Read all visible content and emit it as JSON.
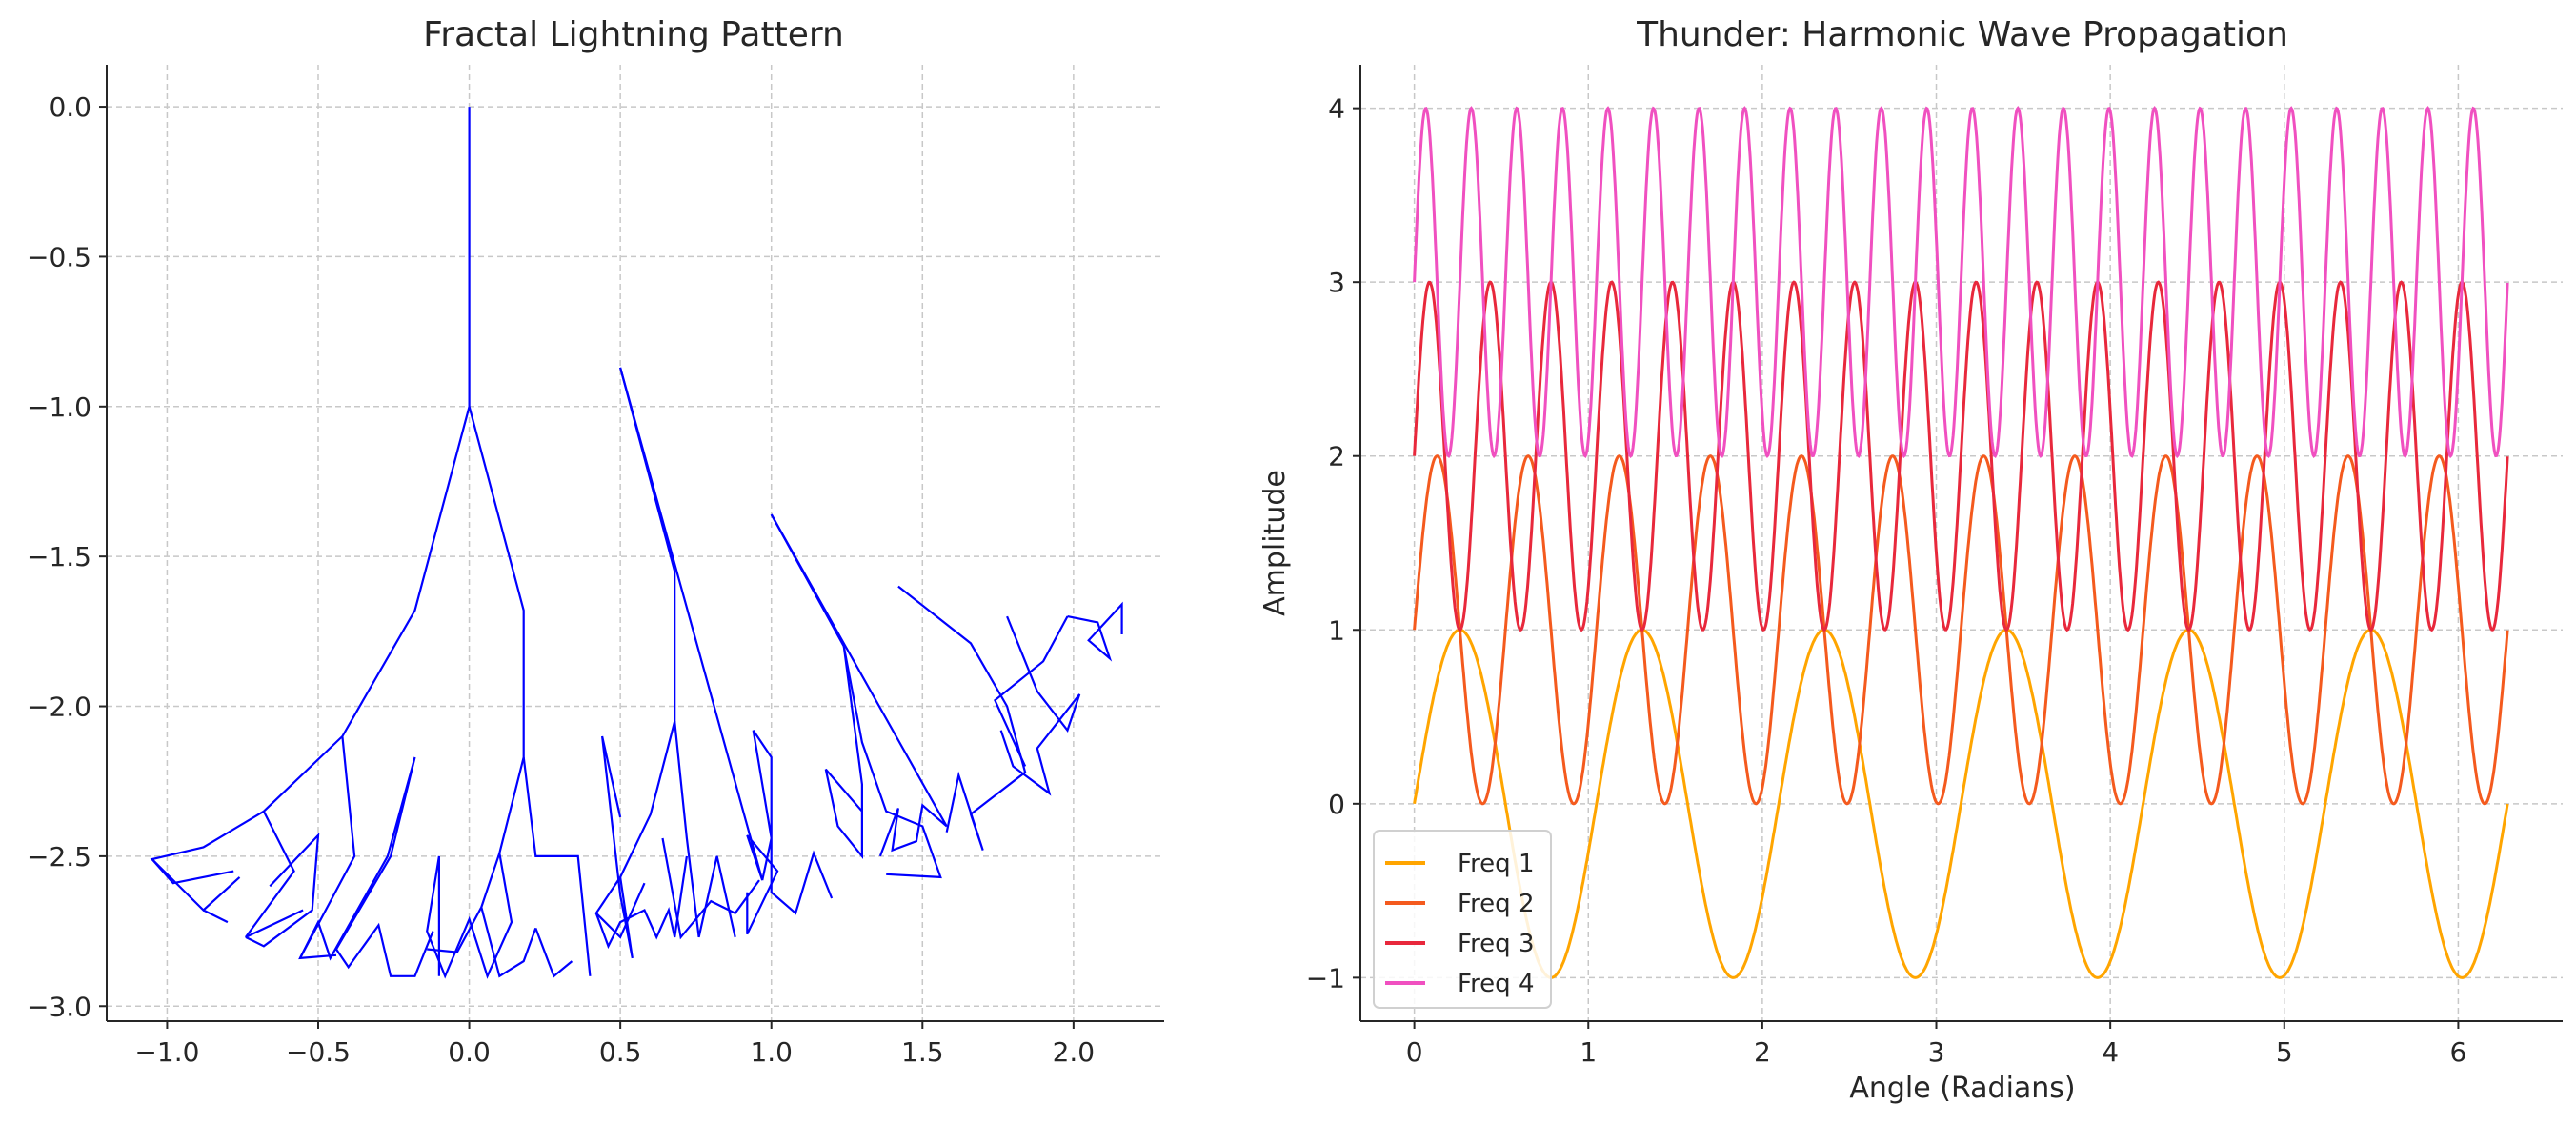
{
  "chart_data": [
    {
      "type": "line",
      "title": "Fractal Lightning Pattern",
      "xlabel": "",
      "ylabel": "",
      "xlim": [
        -1.2,
        2.3
      ],
      "ylim": [
        -3.05,
        0.14
      ],
      "grid": true,
      "xticks": [
        -1.0,
        -0.5,
        0.0,
        0.5,
        1.0,
        1.5,
        2.0
      ],
      "yticks": [
        0.0,
        -0.5,
        -1.0,
        -1.5,
        -2.0,
        -2.5,
        -3.0
      ],
      "xtick_labels": [
        "−1.0",
        "−0.5",
        "0.0",
        "0.5",
        "1.0",
        "1.5",
        "2.0"
      ],
      "ytick_labels": [
        "0.0",
        "−0.5",
        "−1.0",
        "−1.5",
        "−2.0",
        "−2.5",
        "−3.0"
      ],
      "color": "#0000ff",
      "series": [
        {
          "points": [
            [
              0,
              0
            ],
            [
              0,
              -1
            ],
            [
              -0.18,
              -1.68
            ],
            [
              -0.42,
              -2.1
            ],
            [
              -0.68,
              -2.35
            ],
            [
              -0.88,
              -2.47
            ],
            [
              -1.05,
              -2.51
            ],
            [
              -0.98,
              -2.59
            ],
            [
              -0.78,
              -2.55
            ]
          ]
        },
        {
          "points": [
            [
              -1.05,
              -2.51
            ],
            [
              -0.88,
              -2.68
            ],
            [
              -0.76,
              -2.57
            ]
          ]
        },
        {
          "points": [
            [
              -0.88,
              -2.68
            ],
            [
              -0.8,
              -2.72
            ]
          ]
        },
        {
          "points": [
            [
              -0.68,
              -2.35
            ],
            [
              -0.58,
              -2.55
            ],
            [
              -0.74,
              -2.77
            ],
            [
              -0.55,
              -2.68
            ]
          ]
        },
        {
          "points": [
            [
              -0.74,
              -2.77
            ],
            [
              -0.68,
              -2.8
            ],
            [
              -0.52,
              -2.68
            ],
            [
              -0.5,
              -2.43
            ],
            [
              -0.66,
              -2.6
            ]
          ]
        },
        {
          "points": [
            [
              -0.42,
              -2.1
            ],
            [
              -0.38,
              -2.5
            ],
            [
              -0.56,
              -2.84
            ],
            [
              -0.44,
              -2.83
            ],
            [
              -0.56,
              -2.84
            ]
          ]
        },
        {
          "points": [
            [
              -0.56,
              -2.84
            ],
            [
              -0.5,
              -2.72
            ],
            [
              -0.46,
              -2.84
            ],
            [
              -0.27,
              -2.5
            ],
            [
              -0.18,
              -2.17
            ],
            [
              -0.26,
              -2.5
            ],
            [
              -0.44,
              -2.81
            ]
          ]
        },
        {
          "points": [
            [
              -0.44,
              -2.81
            ],
            [
              -0.4,
              -2.87
            ],
            [
              -0.3,
              -2.73
            ],
            [
              -0.26,
              -2.9
            ],
            [
              -0.18,
              -2.9
            ],
            [
              -0.12,
              -2.75
            ]
          ]
        },
        {
          "points": [
            [
              0,
              -1
            ],
            [
              0.18,
              -1.68
            ],
            [
              0.18,
              -2.17
            ],
            [
              0.1,
              -2.49
            ],
            [
              0.04,
              -2.67
            ],
            [
              -0.04,
              -2.82
            ],
            [
              -0.14,
              -2.81
            ]
          ]
        },
        {
          "points": [
            [
              0.1,
              -2.49
            ],
            [
              0.14,
              -2.72
            ],
            [
              0.06,
              -2.9
            ],
            [
              0,
              -2.71
            ],
            [
              -0.08,
              -2.9
            ],
            [
              -0.14,
              -2.75
            ],
            [
              -0.1,
              -2.5
            ],
            [
              -0.1,
              -2.9
            ]
          ]
        },
        {
          "points": [
            [
              0.04,
              -2.67
            ],
            [
              0.1,
              -2.9
            ],
            [
              0.18,
              -2.85
            ],
            [
              0.22,
              -2.74
            ]
          ]
        },
        {
          "points": [
            [
              0.22,
              -2.74
            ],
            [
              0.28,
              -2.9
            ],
            [
              0.34,
              -2.85
            ]
          ]
        },
        {
          "points": [
            [
              0.18,
              -2.17
            ],
            [
              0.22,
              -2.5
            ],
            [
              0.36,
              -2.5
            ],
            [
              0.4,
              -2.9
            ]
          ]
        },
        {
          "points": [
            [
              0.5,
              -0.87
            ],
            [
              0.68,
              -1.55
            ],
            [
              0.68,
              -2.05
            ],
            [
              0.6,
              -2.36
            ],
            [
              0.5,
              -2.57
            ],
            [
              0.42,
              -2.69
            ],
            [
              0.5,
              -2.77
            ],
            [
              0.58,
              -2.59
            ]
          ]
        },
        {
          "points": [
            [
              0.42,
              -2.69
            ],
            [
              0.46,
              -2.8
            ],
            [
              0.5,
              -2.72
            ],
            [
              0.58,
              -2.68
            ],
            [
              0.62,
              -2.77
            ],
            [
              0.66,
              -2.68
            ],
            [
              0.68,
              -2.77
            ],
            [
              0.72,
              -2.5
            ]
          ]
        },
        {
          "points": [
            [
              0.5,
              -2.57
            ],
            [
              0.54,
              -2.84
            ],
            [
              0.5,
              -2.63
            ],
            [
              0.44,
              -2.1
            ],
            [
              0.5,
              -2.37
            ]
          ]
        },
        {
          "points": [
            [
              0.5,
              -0.87
            ],
            [
              0.97,
              -2.58
            ],
            [
              0.92,
              -2.43
            ],
            [
              1.02,
              -2.55
            ],
            [
              0.92,
              -2.76
            ],
            [
              0.92,
              -2.62
            ]
          ]
        },
        {
          "points": [
            [
              0.97,
              -2.58
            ],
            [
              1.0,
              -2.44
            ],
            [
              0.94,
              -2.08
            ],
            [
              1.0,
              -2.17
            ],
            [
              1.0,
              -2.62
            ],
            [
              1.08,
              -2.69
            ],
            [
              1.14,
              -2.49
            ],
            [
              1.2,
              -2.64
            ]
          ]
        },
        {
          "points": [
            [
              0.68,
              -2.05
            ],
            [
              0.72,
              -2.44
            ],
            [
              0.76,
              -2.77
            ],
            [
              0.82,
              -2.5
            ],
            [
              0.88,
              -2.77
            ]
          ]
        },
        {
          "points": [
            [
              0.64,
              -2.44
            ],
            [
              0.7,
              -2.77
            ],
            [
              0.8,
              -2.65
            ],
            [
              0.88,
              -2.69
            ],
            [
              0.96,
              -2.58
            ]
          ]
        },
        {
          "points": [
            [
              1.0,
              -1.36
            ],
            [
              1.24,
              -1.8
            ],
            [
              1.3,
              -2.12
            ],
            [
              1.38,
              -2.35
            ],
            [
              1.5,
              -2.4
            ],
            [
              1.56,
              -2.57
            ],
            [
              1.38,
              -2.56
            ]
          ]
        },
        {
          "points": [
            [
              1.24,
              -1.8
            ],
            [
              1.3,
              -2.26
            ],
            [
              1.3,
              -2.5
            ],
            [
              1.22,
              -2.4
            ],
            [
              1.18,
              -2.21
            ],
            [
              1.3,
              -2.35
            ]
          ]
        },
        {
          "points": [
            [
              1.0,
              -1.36
            ],
            [
              1.58,
              -2.4
            ],
            [
              1.5,
              -2.33
            ],
            [
              1.48,
              -2.45
            ],
            [
              1.4,
              -2.48
            ],
            [
              1.42,
              -2.34
            ],
            [
              1.36,
              -2.5
            ]
          ]
        },
        {
          "points": [
            [
              1.42,
              -1.6
            ],
            [
              1.66,
              -1.79
            ],
            [
              1.78,
              -2.0
            ],
            [
              1.84,
              -2.22
            ],
            [
              1.66,
              -2.36
            ],
            [
              1.7,
              -2.48
            ],
            [
              1.62,
              -2.23
            ],
            [
              1.58,
              -2.42
            ]
          ]
        },
        {
          "points": [
            [
              1.78,
              -1.7
            ],
            [
              1.88,
              -1.95
            ],
            [
              1.98,
              -2.08
            ],
            [
              2.02,
              -1.96
            ],
            [
              1.88,
              -2.14
            ],
            [
              1.92,
              -2.29
            ],
            [
              1.8,
              -2.2
            ],
            [
              1.76,
              -2.08
            ]
          ]
        },
        {
          "points": [
            [
              1.98,
              -1.7
            ],
            [
              2.08,
              -1.72
            ],
            [
              2.12,
              -1.84
            ],
            [
              2.05,
              -1.78
            ],
            [
              2.16,
              -1.66
            ],
            [
              2.16,
              -1.76
            ]
          ]
        },
        {
          "points": [
            [
              1.98,
              -1.7
            ],
            [
              1.9,
              -1.85
            ],
            [
              1.74,
              -1.98
            ],
            [
              1.84,
              -2.2
            ]
          ]
        }
      ]
    },
    {
      "type": "line",
      "title": "Thunder: Harmonic Wave Propagation",
      "xlabel": "Angle (Radians)",
      "ylabel": "Amplitude",
      "xlim": [
        -0.31,
        6.6
      ],
      "ylim": [
        -1.25,
        4.25
      ],
      "grid": true,
      "legend_position": "bottom-left",
      "xticks": [
        0,
        1,
        2,
        3,
        4,
        5,
        6
      ],
      "yticks": [
        -1,
        0,
        1,
        2,
        3,
        4
      ],
      "xtick_labels": [
        "0",
        "1",
        "2",
        "3",
        "4",
        "5",
        "6"
      ],
      "ytick_labels": [
        "−1",
        "0",
        "1",
        "2",
        "3",
        "4"
      ],
      "x_range": [
        0,
        6.283
      ],
      "series": [
        {
          "name": "Freq 1",
          "color": "#ffa500",
          "offset": 0,
          "frequency": 6
        },
        {
          "name": "Freq 2",
          "color": "#f45a1e",
          "offset": 1,
          "frequency": 12
        },
        {
          "name": "Freq 3",
          "color": "#e8283c",
          "offset": 2,
          "frequency": 18
        },
        {
          "name": "Freq 4",
          "color": "#f050c0",
          "offset": 3,
          "frequency": 24
        }
      ]
    }
  ]
}
